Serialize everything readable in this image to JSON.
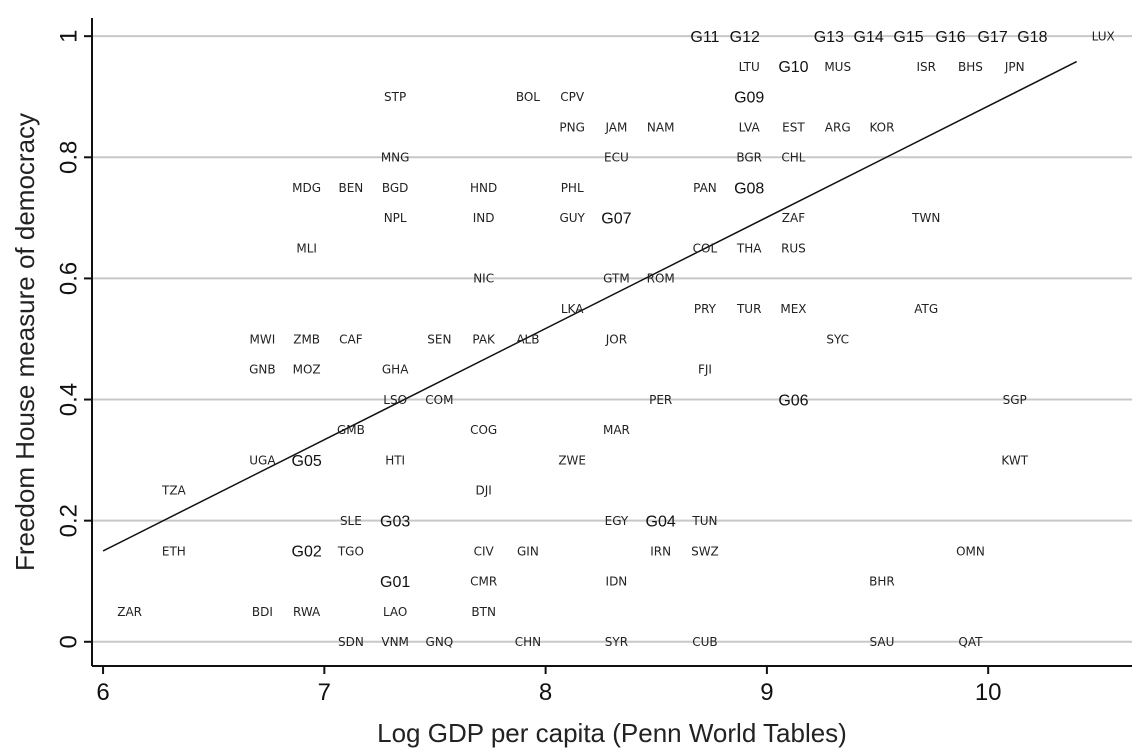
{
  "chart_data": {
    "type": "scatter",
    "title": "",
    "xlabel": "Log GDP per capita (Penn World Tables)",
    "ylabel": "Freedom House measure of democracy",
    "xlim": [
      5.95,
      10.65
    ],
    "ylim": [
      -0.04,
      1.03
    ],
    "x_ticks": [
      6,
      7,
      8,
      9,
      10
    ],
    "y_ticks": [
      0,
      0.2,
      0.4,
      0.6,
      0.8,
      1
    ],
    "y_tick_labels": [
      "0",
      "0.2",
      "0.4",
      "0.6",
      "0.8",
      "1"
    ],
    "grid": true,
    "fit_line": {
      "x": [
        6.0,
        10.4
      ],
      "y": [
        0.15,
        0.958
      ]
    },
    "points": [
      {
        "label": "ZAR",
        "x": 6.12,
        "y": 0.05
      },
      {
        "label": "TZA",
        "x": 6.32,
        "y": 0.25
      },
      {
        "label": "ETH",
        "x": 6.32,
        "y": 0.15
      },
      {
        "label": "MWI",
        "x": 6.72,
        "y": 0.5
      },
      {
        "label": "GNB",
        "x": 6.72,
        "y": 0.45
      },
      {
        "label": "UGA",
        "x": 6.72,
        "y": 0.3
      },
      {
        "label": "BDI",
        "x": 6.72,
        "y": 0.05
      },
      {
        "label": "MDG",
        "x": 6.92,
        "y": 0.75
      },
      {
        "label": "MLI",
        "x": 6.92,
        "y": 0.65
      },
      {
        "label": "ZMB",
        "x": 6.92,
        "y": 0.5
      },
      {
        "label": "MOZ",
        "x": 6.92,
        "y": 0.45
      },
      {
        "label": "G05",
        "x": 6.92,
        "y": 0.3,
        "group": true
      },
      {
        "label": "G02",
        "x": 6.92,
        "y": 0.15,
        "group": true
      },
      {
        "label": "RWA",
        "x": 6.92,
        "y": 0.05
      },
      {
        "label": "BEN",
        "x": 7.12,
        "y": 0.75
      },
      {
        "label": "CAF",
        "x": 7.12,
        "y": 0.5
      },
      {
        "label": "GMB",
        "x": 7.12,
        "y": 0.35
      },
      {
        "label": "SLE",
        "x": 7.12,
        "y": 0.2
      },
      {
        "label": "TGO",
        "x": 7.12,
        "y": 0.15
      },
      {
        "label": "SDN",
        "x": 7.12,
        "y": 0.0
      },
      {
        "label": "STP",
        "x": 7.32,
        "y": 0.9
      },
      {
        "label": "MNG",
        "x": 7.32,
        "y": 0.8
      },
      {
        "label": "BGD",
        "x": 7.32,
        "y": 0.75
      },
      {
        "label": "NPL",
        "x": 7.32,
        "y": 0.7
      },
      {
        "label": "GHA",
        "x": 7.32,
        "y": 0.45
      },
      {
        "label": "LSO",
        "x": 7.32,
        "y": 0.4
      },
      {
        "label": "HTI",
        "x": 7.32,
        "y": 0.3
      },
      {
        "label": "G03",
        "x": 7.32,
        "y": 0.2,
        "group": true
      },
      {
        "label": "G01",
        "x": 7.32,
        "y": 0.1,
        "group": true
      },
      {
        "label": "LAO",
        "x": 7.32,
        "y": 0.05
      },
      {
        "label": "VNM",
        "x": 7.32,
        "y": 0.0
      },
      {
        "label": "SEN",
        "x": 7.52,
        "y": 0.5
      },
      {
        "label": "COM",
        "x": 7.52,
        "y": 0.4
      },
      {
        "label": "GNQ",
        "x": 7.52,
        "y": 0.0
      },
      {
        "label": "HND",
        "x": 7.72,
        "y": 0.75
      },
      {
        "label": "IND",
        "x": 7.72,
        "y": 0.7
      },
      {
        "label": "NIC",
        "x": 7.72,
        "y": 0.6
      },
      {
        "label": "PAK",
        "x": 7.72,
        "y": 0.5
      },
      {
        "label": "COG",
        "x": 7.72,
        "y": 0.35
      },
      {
        "label": "DJI",
        "x": 7.72,
        "y": 0.25
      },
      {
        "label": "CIV",
        "x": 7.72,
        "y": 0.15
      },
      {
        "label": "CMR",
        "x": 7.72,
        "y": 0.1
      },
      {
        "label": "BTN",
        "x": 7.72,
        "y": 0.05
      },
      {
        "label": "BOL",
        "x": 7.92,
        "y": 0.9
      },
      {
        "label": "ALB",
        "x": 7.92,
        "y": 0.5
      },
      {
        "label": "GIN",
        "x": 7.92,
        "y": 0.15
      },
      {
        "label": "CHN",
        "x": 7.92,
        "y": 0.0
      },
      {
        "label": "CPV",
        "x": 8.12,
        "y": 0.9
      },
      {
        "label": "PNG",
        "x": 8.12,
        "y": 0.85
      },
      {
        "label": "PHL",
        "x": 8.12,
        "y": 0.75
      },
      {
        "label": "GUY",
        "x": 8.12,
        "y": 0.7
      },
      {
        "label": "LKA",
        "x": 8.12,
        "y": 0.55
      },
      {
        "label": "ZWE",
        "x": 8.12,
        "y": 0.3
      },
      {
        "label": "JAM",
        "x": 8.32,
        "y": 0.85
      },
      {
        "label": "ECU",
        "x": 8.32,
        "y": 0.8
      },
      {
        "label": "G07",
        "x": 8.32,
        "y": 0.7,
        "group": true
      },
      {
        "label": "GTM",
        "x": 8.32,
        "y": 0.6
      },
      {
        "label": "JOR",
        "x": 8.32,
        "y": 0.5
      },
      {
        "label": "MAR",
        "x": 8.32,
        "y": 0.35
      },
      {
        "label": "EGY",
        "x": 8.32,
        "y": 0.2
      },
      {
        "label": "IDN",
        "x": 8.32,
        "y": 0.1
      },
      {
        "label": "SYR",
        "x": 8.32,
        "y": 0.0
      },
      {
        "label": "NAM",
        "x": 8.52,
        "y": 0.85
      },
      {
        "label": "ROM",
        "x": 8.52,
        "y": 0.6
      },
      {
        "label": "PER",
        "x": 8.52,
        "y": 0.4
      },
      {
        "label": "G04",
        "x": 8.52,
        "y": 0.2,
        "group": true
      },
      {
        "label": "IRN",
        "x": 8.52,
        "y": 0.15
      },
      {
        "label": "PAN",
        "x": 8.72,
        "y": 0.75
      },
      {
        "label": "COL",
        "x": 8.72,
        "y": 0.65
      },
      {
        "label": "PRY",
        "x": 8.72,
        "y": 0.55
      },
      {
        "label": "FJI",
        "x": 8.72,
        "y": 0.45
      },
      {
        "label": "TUN",
        "x": 8.72,
        "y": 0.2
      },
      {
        "label": "SWZ",
        "x": 8.72,
        "y": 0.15
      },
      {
        "label": "CUB",
        "x": 8.72,
        "y": 0.0
      },
      {
        "label": "G11",
        "x": 8.72,
        "y": 1.0,
        "group": true
      },
      {
        "label": "G12",
        "x": 8.9,
        "y": 1.0,
        "group": true
      },
      {
        "label": "LTU",
        "x": 8.92,
        "y": 0.95
      },
      {
        "label": "G09",
        "x": 8.92,
        "y": 0.9,
        "group": true
      },
      {
        "label": "LVA",
        "x": 8.92,
        "y": 0.85
      },
      {
        "label": "BGR",
        "x": 8.92,
        "y": 0.8
      },
      {
        "label": "G08",
        "x": 8.92,
        "y": 0.75,
        "group": true
      },
      {
        "label": "THA",
        "x": 8.92,
        "y": 0.65
      },
      {
        "label": "TUR",
        "x": 8.92,
        "y": 0.55
      },
      {
        "label": "G10",
        "x": 9.12,
        "y": 0.95,
        "group": true
      },
      {
        "label": "EST",
        "x": 9.12,
        "y": 0.85
      },
      {
        "label": "CHL",
        "x": 9.12,
        "y": 0.8
      },
      {
        "label": "ZAF",
        "x": 9.12,
        "y": 0.7
      },
      {
        "label": "RUS",
        "x": 9.12,
        "y": 0.65
      },
      {
        "label": "MEX",
        "x": 9.12,
        "y": 0.55
      },
      {
        "label": "G06",
        "x": 9.12,
        "y": 0.4,
        "group": true
      },
      {
        "label": "G13",
        "x": 9.28,
        "y": 1.0,
        "group": true
      },
      {
        "label": "MUS",
        "x": 9.32,
        "y": 0.95
      },
      {
        "label": "ARG",
        "x": 9.32,
        "y": 0.85
      },
      {
        "label": "SYC",
        "x": 9.32,
        "y": 0.5
      },
      {
        "label": "G14",
        "x": 9.46,
        "y": 1.0,
        "group": true
      },
      {
        "label": "KOR",
        "x": 9.52,
        "y": 0.85
      },
      {
        "label": "BHR",
        "x": 9.52,
        "y": 0.1
      },
      {
        "label": "SAU",
        "x": 9.52,
        "y": 0.0
      },
      {
        "label": "G15",
        "x": 9.64,
        "y": 1.0,
        "group": true
      },
      {
        "label": "ISR",
        "x": 9.72,
        "y": 0.95
      },
      {
        "label": "TWN",
        "x": 9.72,
        "y": 0.7
      },
      {
        "label": "ATG",
        "x": 9.72,
        "y": 0.55
      },
      {
        "label": "G16",
        "x": 9.83,
        "y": 1.0,
        "group": true
      },
      {
        "label": "BHS",
        "x": 9.92,
        "y": 0.95
      },
      {
        "label": "OMN",
        "x": 9.92,
        "y": 0.15
      },
      {
        "label": "QAT",
        "x": 9.92,
        "y": 0.0
      },
      {
        "label": "G17",
        "x": 10.02,
        "y": 1.0,
        "group": true
      },
      {
        "label": "G18",
        "x": 10.2,
        "y": 1.0,
        "group": true
      },
      {
        "label": "JPN",
        "x": 10.12,
        "y": 0.95
      },
      {
        "label": "SGP",
        "x": 10.12,
        "y": 0.4
      },
      {
        "label": "KWT",
        "x": 10.12,
        "y": 0.3
      },
      {
        "label": "LUX",
        "x": 10.52,
        "y": 1.0
      }
    ]
  }
}
